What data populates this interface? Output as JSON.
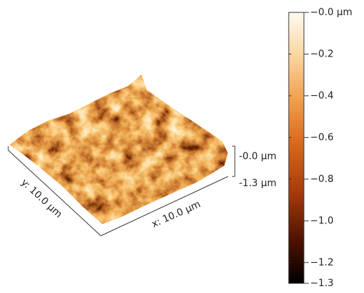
{
  "chart_data": {
    "type": "surface3d",
    "x_label": "x: 10.0 µm",
    "y_label": "y: 10.0 µm",
    "z_top_label": "-0.0 µm",
    "z_bottom_label": "-1.3 µm",
    "clim": [
      -1.3,
      0
    ],
    "cticks": [
      {
        "value": 0,
        "label": "−0.0 µm"
      },
      {
        "value": -0.2,
        "label": "−0.2"
      },
      {
        "value": -0.4,
        "label": "−0.4"
      },
      {
        "value": -0.6,
        "label": "−0.6"
      },
      {
        "value": -0.8,
        "label": "−0.8"
      },
      {
        "value": -1.0,
        "label": "−1.0"
      },
      {
        "value": -1.2,
        "label": "−1.2"
      },
      {
        "value": -1.3,
        "label": "−1.3"
      }
    ]
  }
}
